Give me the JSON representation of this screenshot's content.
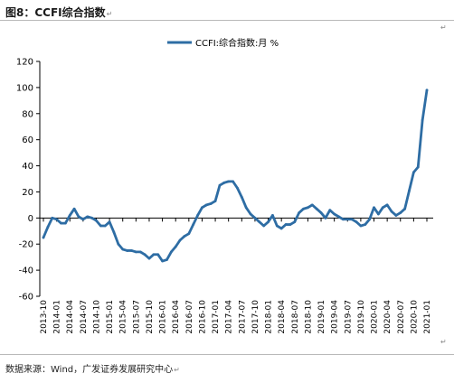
{
  "figure": {
    "title_label": "图8：",
    "title_name": "CCFI综合指数",
    "return_mark": "↵",
    "source": "数据来源：Wind，广发证券发展研究中心"
  },
  "colors": {
    "line": "#2e6da4",
    "axis": "#000000",
    "text": "#000000",
    "rule": "#b9b9b9"
  },
  "chart_data": {
    "type": "line",
    "title": "",
    "xlabel": "",
    "ylabel": "",
    "ylim": [
      -60,
      120
    ],
    "yticks": [
      -60,
      -40,
      -20,
      0,
      20,
      40,
      60,
      80,
      100,
      120
    ],
    "grid": false,
    "legend": "top-center",
    "x_tick_labels": [
      "2013-10",
      "2014-01",
      "2014-04",
      "2014-07",
      "2014-10",
      "2015-01",
      "2015-04",
      "2015-07",
      "2015-10",
      "2016-01",
      "2016-04",
      "2016-07",
      "2016-10",
      "2017-01",
      "2017-04",
      "2017-07",
      "2017-10",
      "2018-01",
      "2018-04",
      "2018-07",
      "2018-10",
      "2019-01",
      "2019-04",
      "2019-07",
      "2019-10",
      "2020-01",
      "2020-04",
      "2020-07",
      "2020-10",
      "2021-01"
    ],
    "series": [
      {
        "name": "CCFI:综合指数:月 %",
        "x": [
          "2013-10",
          "2013-11",
          "2013-12",
          "2014-01",
          "2014-02",
          "2014-03",
          "2014-04",
          "2014-05",
          "2014-06",
          "2014-07",
          "2014-08",
          "2014-09",
          "2014-10",
          "2014-11",
          "2014-12",
          "2015-01",
          "2015-02",
          "2015-03",
          "2015-04",
          "2015-05",
          "2015-06",
          "2015-07",
          "2015-08",
          "2015-09",
          "2015-10",
          "2015-11",
          "2015-12",
          "2016-01",
          "2016-02",
          "2016-03",
          "2016-04",
          "2016-05",
          "2016-06",
          "2016-07",
          "2016-08",
          "2016-09",
          "2016-10",
          "2016-11",
          "2016-12",
          "2017-01",
          "2017-02",
          "2017-03",
          "2017-04",
          "2017-05",
          "2017-06",
          "2017-07",
          "2017-08",
          "2017-09",
          "2017-10",
          "2017-11",
          "2017-12",
          "2018-01",
          "2018-02",
          "2018-03",
          "2018-04",
          "2018-05",
          "2018-06",
          "2018-07",
          "2018-08",
          "2018-09",
          "2018-10",
          "2018-11",
          "2018-12",
          "2019-01",
          "2019-02",
          "2019-03",
          "2019-04",
          "2019-05",
          "2019-06",
          "2019-07",
          "2019-08",
          "2019-09",
          "2019-10",
          "2019-11",
          "2019-12",
          "2020-01",
          "2020-02",
          "2020-03",
          "2020-04",
          "2020-05",
          "2020-06",
          "2020-07",
          "2020-08",
          "2020-09",
          "2020-10",
          "2020-11",
          "2020-12",
          "2021-01"
        ],
        "values": [
          -15,
          -7,
          0,
          -1,
          -4,
          -4,
          2,
          7,
          1,
          -1,
          1,
          0,
          -2,
          -6,
          -6,
          -3,
          -11,
          -20,
          -24,
          -25,
          -25,
          -26,
          -26,
          -28,
          -31,
          -28,
          -28,
          -33,
          -32,
          -26,
          -22,
          -17,
          -14,
          -12,
          -5,
          2,
          8,
          10,
          11,
          13,
          25,
          27,
          28,
          28,
          23,
          16,
          8,
          3,
          0,
          -3,
          -6,
          -3,
          2,
          -6,
          -8,
          -5,
          -5,
          -3,
          4,
          7,
          8,
          10,
          7,
          4,
          0,
          6,
          3,
          1,
          -1,
          -1,
          -1,
          -3,
          -6,
          -5,
          -1,
          8,
          3,
          8,
          10,
          5,
          2,
          4,
          7,
          21,
          35,
          39,
          75,
          98
        ]
      }
    ]
  }
}
